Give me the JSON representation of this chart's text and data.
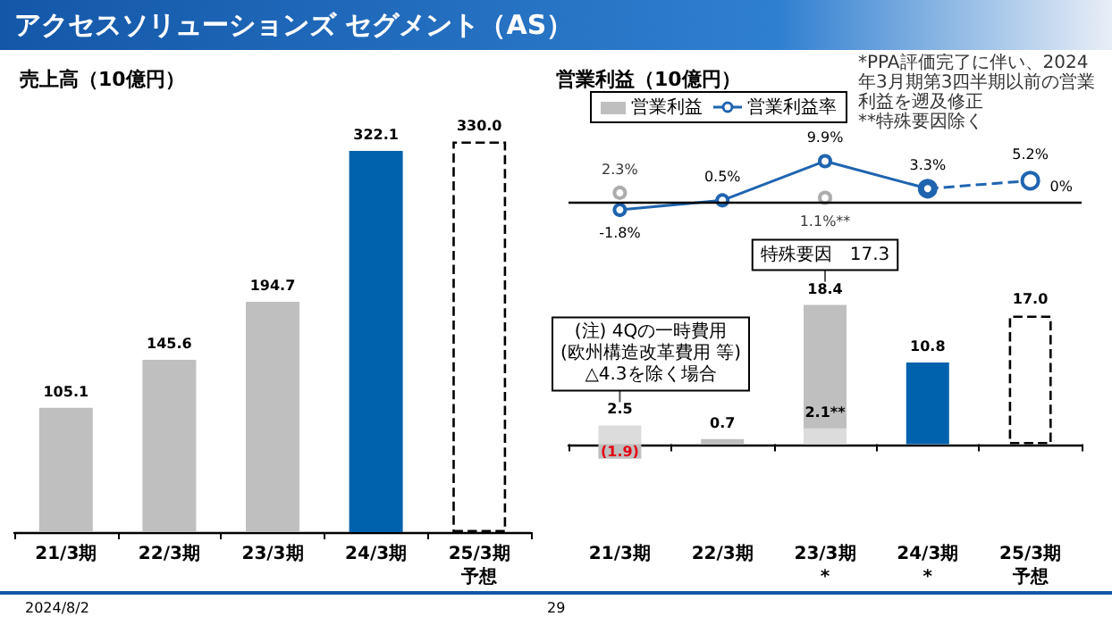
{
  "chart_data": [
    {
      "type": "bar",
      "title": "売上高（10億円）",
      "categories": [
        "21/3期",
        "22/3期",
        "23/3期",
        "24/3期",
        "25/3期予想"
      ],
      "series": [
        {
          "values": [
            105.1,
            145.6,
            194.7,
            322.1,
            null
          ],
          "colors": [
            "#bfbfbf",
            "#bfbfbf",
            "#bfbfbf",
            "#0062ad",
            null
          ],
          "value_labels": [
            "105.1",
            "145.6",
            "194.7",
            "322.1",
            null
          ]
        },
        {
          "values": [
            null,
            null,
            null,
            null,
            330.0
          ],
          "color": "#ffffff",
          "line_style": "dashed",
          "value_labels": [
            null,
            null,
            null,
            null,
            "330.0"
          ]
        }
      ],
      "annotations": [
        "アクセスソリューションズ セグメント（AS）",
        "2024/8/2",
        "29"
      ]
    },
    {
      "type": "line",
      "title": "営業利益（10億円）",
      "categories": [
        "21/3期",
        "22/3期",
        "23/3期*",
        "24/3期*",
        "25/3期予想"
      ],
      "tick_labels": false,
      "legend": "top left",
      "marker": "circle",
      "series": [
        {
          "name": "営業利益率",
          "color": "#1f64b0",
          "line_style": "solid",
          "values": [
            -1.8,
            0.5,
            9.9,
            3.3,
            null
          ],
          "value_labels": [
            "-1.8%",
            "0.5%",
            "9.9%",
            "3.3%",
            null
          ]
        },
        {
          "color": "#1f64b0",
          "line_style": "dashed",
          "values": [
            null,
            null,
            null,
            3.3,
            5.2
          ],
          "value_labels": [
            null,
            null,
            null,
            null,
            "5.2%"
          ]
        },
        {
          "type": "scatter",
          "color": "#999999",
          "values": [
            2.3,
            null,
            1.1,
            null,
            null
          ],
          "value_labels": [
            "2.3%",
            null,
            "1.1%**",
            null,
            null
          ]
        }
      ],
      "ref_lines": [
        {
          "axis": "y",
          "value": 0,
          "label": "0%"
        }
      ],
      "annotations": [
        "*PPA評価完了に伴い、2024年3月期第3四半期以前の営業利益を遡及修正",
        "**特殊要因除く"
      ]
    },
    {
      "type": "bar",
      "categories": [
        "21/3期",
        "22/3期",
        "23/3期*",
        "24/3期*",
        "25/3期予想"
      ],
      "series": [
        {
          "name": "営業利益",
          "color": "#bfbfbf",
          "colors": [
            "#bfbfbf",
            "#bfbfbf",
            "#bfbfbf",
            "#0062ad",
            null
          ],
          "values": [
            -1.9,
            0.7,
            18.4,
            10.8,
            null
          ],
          "value_labels": [
            "(1.9)",
            "0.7",
            "18.4",
            "10.8",
            null
          ]
        },
        {
          "color": "#dcdcdc",
          "values": [
            2.5,
            null,
            2.1,
            null,
            null
          ],
          "value_labels": [
            "2.5",
            null,
            "2.1**",
            null,
            null
          ]
        },
        {
          "color": "#ffffff",
          "line_style": "dashed",
          "values": [
            null,
            null,
            null,
            null,
            17.0
          ],
          "value_labels": [
            null,
            null,
            null,
            null,
            "17.0"
          ]
        }
      ],
      "annotations": [
        {
          "text": "(注) 4Qの一時費用\n(欧州構造改革費用 等)\n△4.3を除く場合",
          "x": "21/3期",
          "y": 2.5
        },
        {
          "text": "特殊要因　17.3",
          "x": "23/3期*",
          "y": 18.4
        }
      ]
    }
  ]
}
